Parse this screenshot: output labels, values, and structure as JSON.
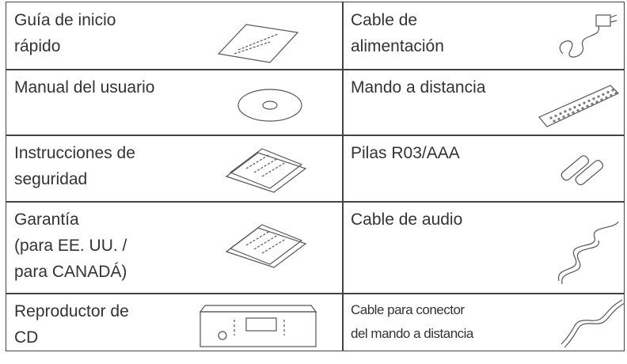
{
  "table": {
    "rows": [
      [
        [
          "Guía de inicio",
          "rápido"
        ],
        [
          "Cable de",
          "alimentación"
        ]
      ],
      [
        [
          "Manual del usuario"
        ],
        [
          "Mando a distancia"
        ]
      ],
      [
        [
          "Instrucciones de",
          "seguridad"
        ],
        [
          "Pilas R03/AAA"
        ]
      ],
      [
        [
          "Garantía",
          "(para EE. UU. /",
          "para CANADÁ)"
        ],
        [
          "Cable de audio"
        ]
      ],
      [
        [
          "Reproductor de",
          "CD"
        ],
        [
          "Cable para conector",
          "del mando a distancia"
        ]
      ]
    ]
  }
}
